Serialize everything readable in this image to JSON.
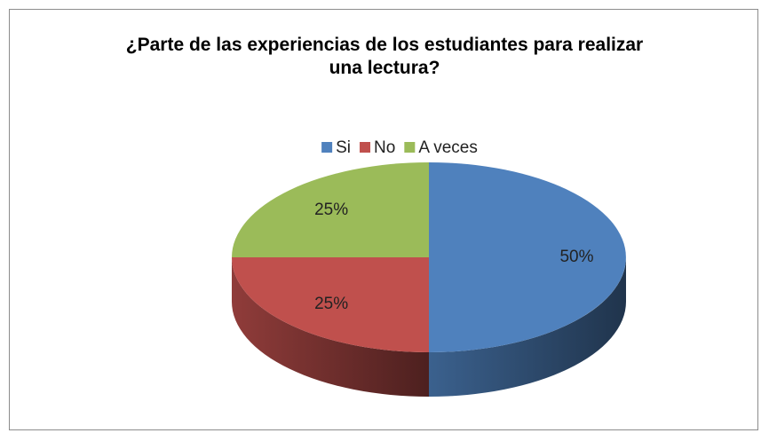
{
  "chart_data": {
    "type": "pie",
    "title": "¿Parte de las experiencias de los estudiantes para realizar una lectura?",
    "categories": [
      "Si",
      "No",
      "A veces"
    ],
    "values": [
      50,
      25,
      25
    ],
    "value_labels": [
      "50%",
      "25%",
      "25%"
    ],
    "colors": [
      "#4f81bd",
      "#c0504d",
      "#9bbb59"
    ],
    "legend": "top"
  }
}
